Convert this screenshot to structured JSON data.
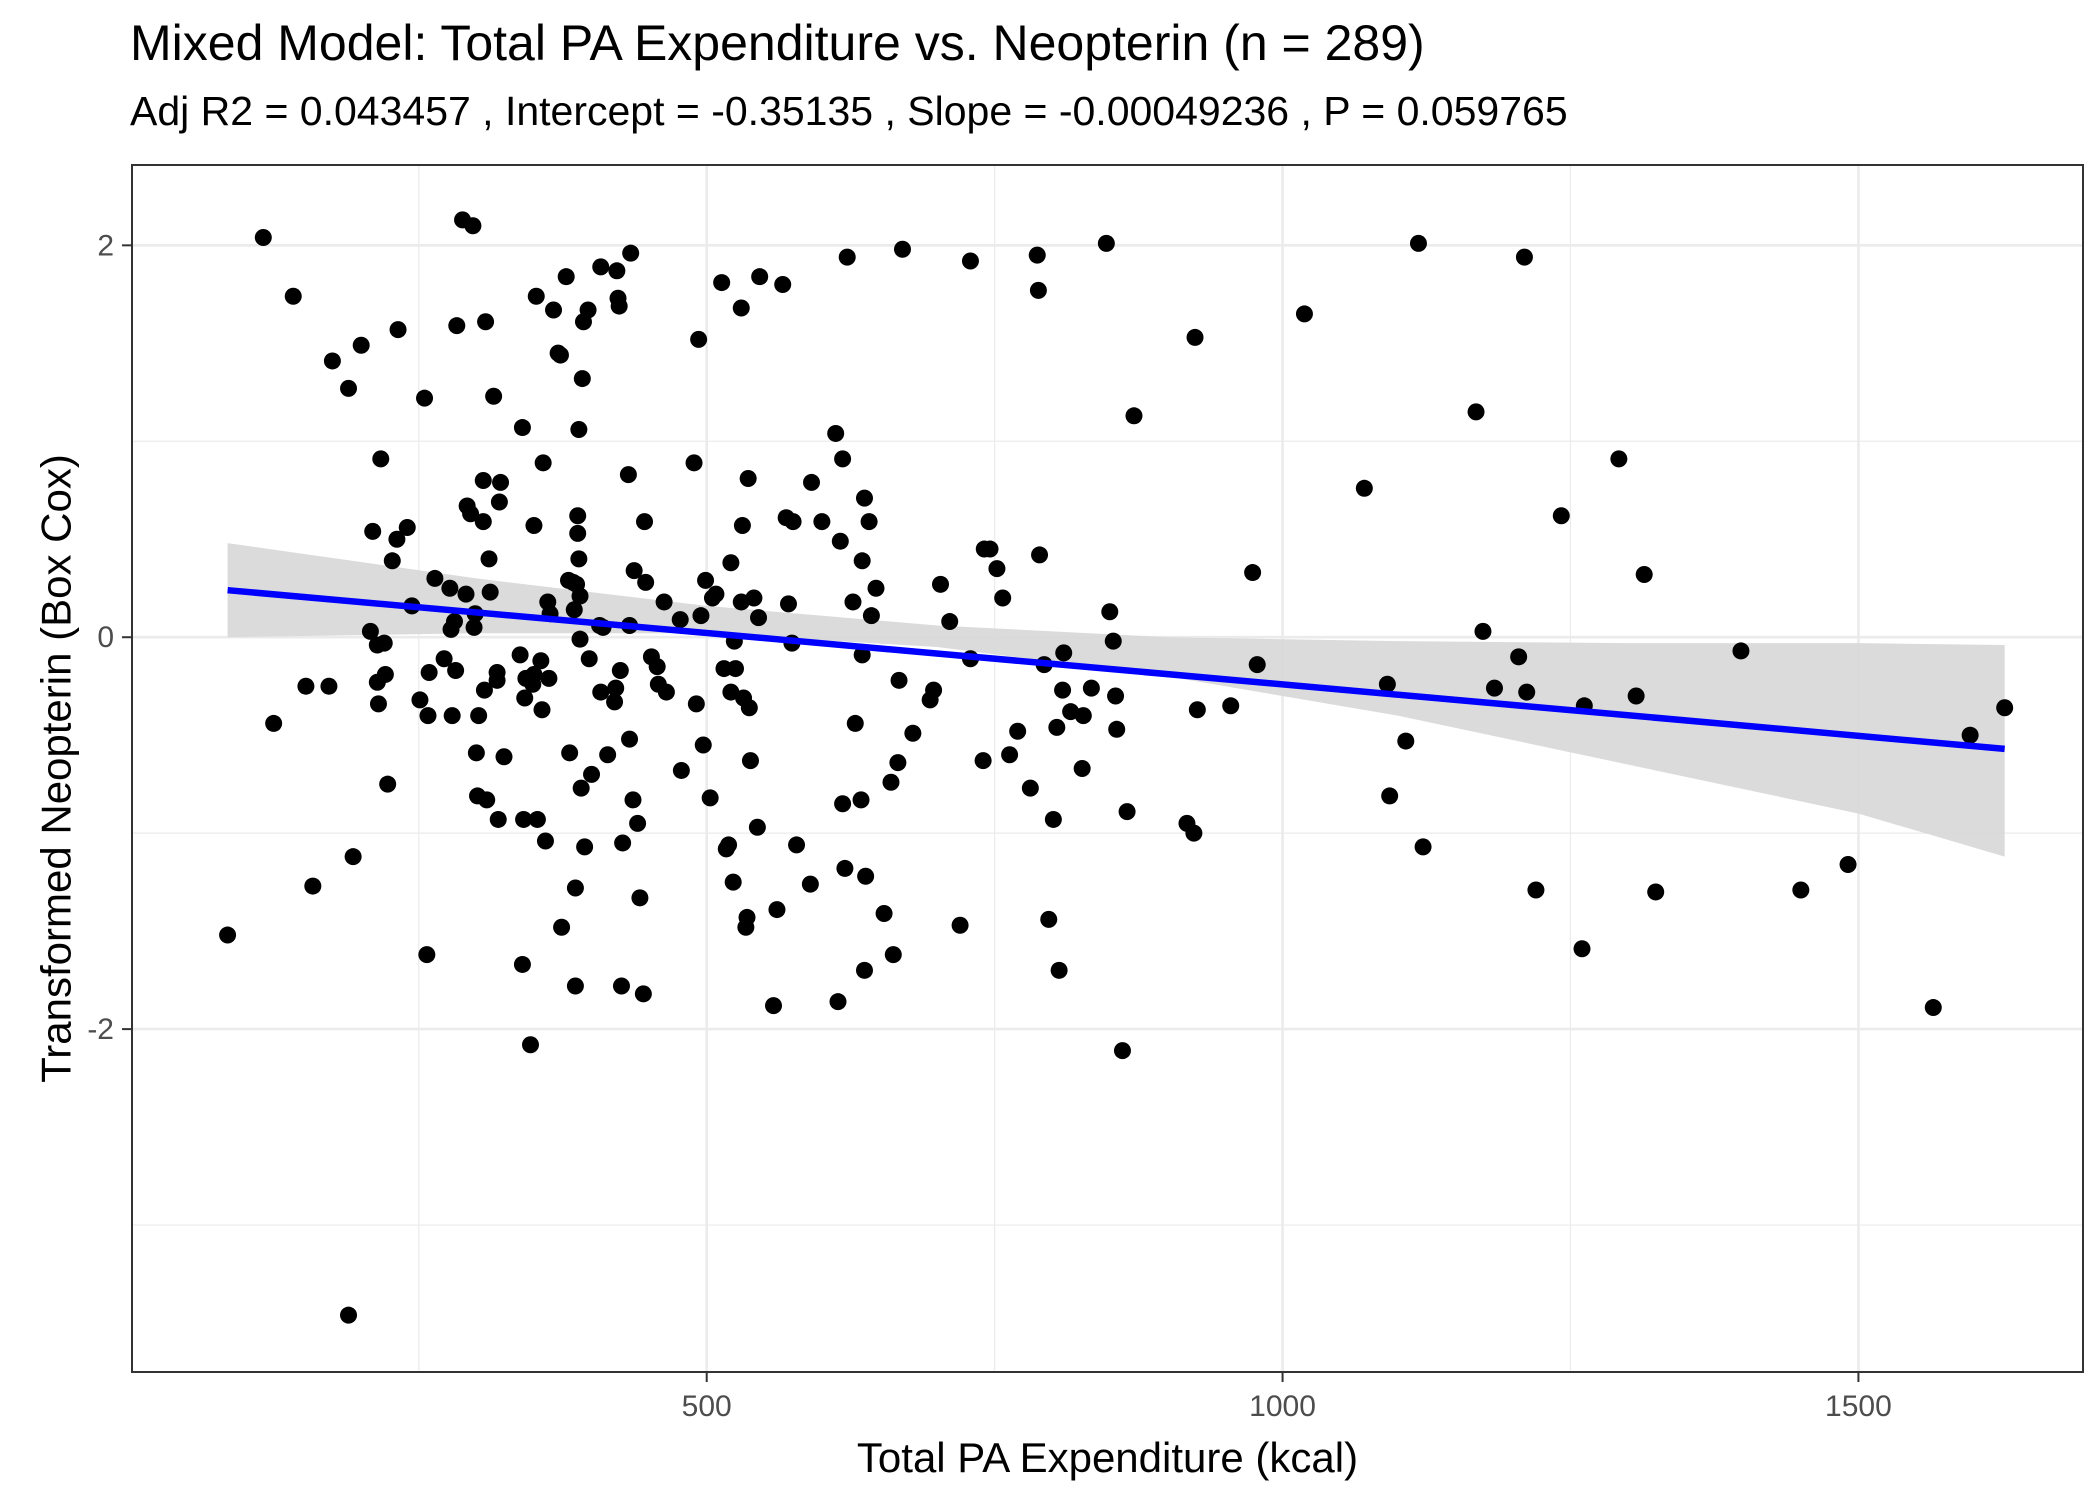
{
  "chart_data": {
    "type": "scatter",
    "title": "Mixed Model: Total PA Expenditure vs. Neopterin (n = 289)",
    "subtitle": "Adj R2 =  0.043457 , Intercept =  -0.35135 , Slope =  -0.00049236 , P =  0.059765",
    "xlabel": "Total PA Expenditure (kcal)",
    "ylabel": "Transformed Neopterin (Box Cox)",
    "xlim": [
      1,
      1695
    ],
    "ylim": [
      -3.75,
      2.41
    ],
    "x_ticks": [
      500,
      1000,
      1500
    ],
    "x_tick_labels": [
      "500",
      "1000",
      "1500"
    ],
    "y_ticks": [
      -2,
      0,
      2
    ],
    "y_tick_labels": [
      "-2",
      "0",
      "2"
    ],
    "grid": true,
    "legend": "none",
    "colors": {
      "points": "#000000",
      "fit_line": "#0000ff",
      "confidence_band": "#d9d9d9",
      "panel_border": "#333333",
      "grid": "#ebebeb"
    },
    "fit_line": {
      "x": [
        84,
        1627
      ],
      "y": [
        0.24,
        -0.57
      ]
    },
    "confidence_band": {
      "x": [
        84,
        300,
        500,
        700,
        900,
        1100,
        1300,
        1500,
        1627
      ],
      "upper": [
        0.48,
        0.3,
        0.16,
        0.06,
        0.0,
        -0.02,
        -0.03,
        -0.03,
        -0.04
      ],
      "lower": [
        0.0,
        0.02,
        0.02,
        -0.05,
        -0.2,
        -0.4,
        -0.65,
        -0.9,
        -1.12
      ]
    },
    "points": [
      [
        84,
        -1.52
      ],
      [
        115,
        2.04
      ],
      [
        124,
        -0.44
      ],
      [
        141,
        1.74
      ],
      [
        152,
        -0.25
      ],
      [
        158,
        -1.27
      ],
      [
        172,
        -0.25
      ],
      [
        175,
        1.41
      ],
      [
        189,
        -3.46
      ],
      [
        189,
        1.27
      ],
      [
        193,
        -1.12
      ],
      [
        200,
        1.49
      ],
      [
        208,
        0.03
      ],
      [
        210,
        0.54
      ],
      [
        214,
        -0.04
      ],
      [
        214,
        -0.23
      ],
      [
        215,
        -0.34
      ],
      [
        217,
        0.91
      ],
      [
        220,
        -0.03
      ],
      [
        221,
        -0.19
      ],
      [
        223,
        -0.75
      ],
      [
        227,
        0.39
      ],
      [
        231,
        0.5
      ],
      [
        232,
        1.57
      ],
      [
        240,
        0.56
      ],
      [
        244,
        0.16
      ],
      [
        251,
        -0.32
      ],
      [
        255,
        1.22
      ],
      [
        257,
        -1.62
      ],
      [
        258,
        -0.4
      ],
      [
        259,
        -0.18
      ],
      [
        264,
        0.3
      ],
      [
        272,
        -0.11
      ],
      [
        277,
        0.25
      ],
      [
        278,
        0.04
      ],
      [
        279,
        -0.4
      ],
      [
        281,
        0.08
      ],
      [
        282,
        -0.17
      ],
      [
        283,
        1.59
      ],
      [
        288,
        2.13
      ],
      [
        291,
        0.22
      ],
      [
        292,
        0.67
      ],
      [
        295,
        0.63
      ],
      [
        297,
        2.1
      ],
      [
        298,
        0.05
      ],
      [
        299,
        0.12
      ],
      [
        300,
        -0.59
      ],
      [
        301,
        -0.81
      ],
      [
        302,
        -0.4
      ],
      [
        306,
        0.8
      ],
      [
        306,
        0.59
      ],
      [
        307,
        -0.27
      ],
      [
        308,
        1.61
      ],
      [
        309,
        -0.83
      ],
      [
        311,
        0.4
      ],
      [
        312,
        0.23
      ],
      [
        315,
        1.23
      ],
      [
        318,
        -0.18
      ],
      [
        318,
        -0.22
      ],
      [
        319,
        -0.93
      ],
      [
        320,
        0.69
      ],
      [
        321,
        0.79
      ],
      [
        324,
        -0.61
      ],
      [
        338,
        -0.09
      ],
      [
        340,
        -1.67
      ],
      [
        340,
        1.07
      ],
      [
        341,
        -0.93
      ],
      [
        342,
        -0.31
      ],
      [
        343,
        -0.21
      ],
      [
        347,
        -2.08
      ],
      [
        349,
        -0.24
      ],
      [
        350,
        0.57
      ],
      [
        350,
        -0.19
      ],
      [
        352,
        1.74
      ],
      [
        353,
        -0.93
      ],
      [
        356,
        -0.12
      ],
      [
        357,
        -0.37
      ],
      [
        358,
        0.89
      ],
      [
        360,
        -1.04
      ],
      [
        362,
        0.18
      ],
      [
        363,
        -0.21
      ],
      [
        364,
        0.12
      ],
      [
        367,
        1.67
      ],
      [
        371,
        1.45
      ],
      [
        373,
        1.44
      ],
      [
        374,
        -1.48
      ],
      [
        378,
        1.84
      ],
      [
        380,
        0.29
      ],
      [
        381,
        -0.59
      ],
      [
        384,
        0.28
      ],
      [
        385,
        0.14
      ],
      [
        386,
        -1.28
      ],
      [
        386,
        -1.78
      ],
      [
        387,
        0.27
      ],
      [
        388,
        0.62
      ],
      [
        388,
        0.53
      ],
      [
        389,
        1.06
      ],
      [
        389,
        0.4
      ],
      [
        390,
        0.21
      ],
      [
        390,
        -0.01
      ],
      [
        391,
        -0.77
      ],
      [
        392,
        1.32
      ],
      [
        393,
        1.61
      ],
      [
        394,
        -1.07
      ],
      [
        397,
        1.67
      ],
      [
        398,
        -0.11
      ],
      [
        400,
        -0.7
      ],
      [
        407,
        0.06
      ],
      [
        408,
        -0.28
      ],
      [
        408,
        1.89
      ],
      [
        410,
        0.05
      ],
      [
        414,
        -0.6
      ],
      [
        420,
        -0.33
      ],
      [
        421,
        -0.26
      ],
      [
        422,
        1.87
      ],
      [
        423,
        1.73
      ],
      [
        424,
        1.69
      ],
      [
        425,
        -0.17
      ],
      [
        426,
        -1.78
      ],
      [
        427,
        -1.05
      ],
      [
        432,
        0.83
      ],
      [
        433,
        0.06
      ],
      [
        433,
        -0.52
      ],
      [
        434,
        1.96
      ],
      [
        436,
        -0.83
      ],
      [
        437,
        0.34
      ],
      [
        440,
        -0.95
      ],
      [
        442,
        -1.33
      ],
      [
        445,
        -1.82
      ],
      [
        446,
        0.59
      ],
      [
        447,
        0.28
      ],
      [
        452,
        -0.1
      ],
      [
        457,
        -0.15
      ],
      [
        458,
        -0.24
      ],
      [
        463,
        0.18
      ],
      [
        465,
        -0.28
      ],
      [
        477,
        0.09
      ],
      [
        478,
        -0.68
      ],
      [
        489,
        0.89
      ],
      [
        491,
        -0.34
      ],
      [
        493,
        1.52
      ],
      [
        495,
        0.11
      ],
      [
        497,
        -0.55
      ],
      [
        499,
        0.29
      ],
      [
        503,
        -0.82
      ],
      [
        505,
        0.2
      ],
      [
        508,
        0.22
      ],
      [
        513,
        1.81
      ],
      [
        515,
        -0.16
      ],
      [
        517,
        -1.08
      ],
      [
        519,
        -1.06
      ],
      [
        521,
        -0.28
      ],
      [
        521,
        0.38
      ],
      [
        523,
        -1.25
      ],
      [
        524,
        -0.02
      ],
      [
        525,
        -0.16
      ],
      [
        530,
        0.18
      ],
      [
        530,
        1.68
      ],
      [
        531,
        0.57
      ],
      [
        532,
        -0.31
      ],
      [
        534,
        -1.48
      ],
      [
        535,
        -1.43
      ],
      [
        536,
        0.81
      ],
      [
        537,
        -0.36
      ],
      [
        538,
        -0.63
      ],
      [
        541,
        0.2
      ],
      [
        544,
        -0.97
      ],
      [
        545,
        0.1
      ],
      [
        546,
        1.84
      ],
      [
        558,
        -1.88
      ],
      [
        561,
        -1.39
      ],
      [
        566,
        1.8
      ],
      [
        569,
        0.61
      ],
      [
        571,
        0.17
      ],
      [
        574,
        -0.03
      ],
      [
        575,
        0.59
      ],
      [
        578,
        -1.06
      ],
      [
        590,
        -1.26
      ],
      [
        591,
        0.79
      ],
      [
        600,
        0.59
      ],
      [
        612,
        1.04
      ],
      [
        614,
        -1.86
      ],
      [
        616,
        0.49
      ],
      [
        618,
        0.91
      ],
      [
        618,
        -0.85
      ],
      [
        620,
        -1.18
      ],
      [
        622,
        1.94
      ],
      [
        627,
        0.18
      ],
      [
        629,
        -0.44
      ],
      [
        634,
        -0.83
      ],
      [
        635,
        -0.09
      ],
      [
        635,
        0.39
      ],
      [
        637,
        -1.7
      ],
      [
        637,
        0.71
      ],
      [
        638,
        -1.22
      ],
      [
        641,
        0.59
      ],
      [
        643,
        0.11
      ],
      [
        647,
        0.25
      ],
      [
        654,
        -1.41
      ],
      [
        660,
        -0.74
      ],
      [
        662,
        -1.62
      ],
      [
        666,
        -0.64
      ],
      [
        667,
        -0.22
      ],
      [
        670,
        1.98
      ],
      [
        679,
        -0.49
      ],
      [
        694,
        -0.32
      ],
      [
        697,
        -0.27
      ],
      [
        703,
        0.27
      ],
      [
        711,
        0.08
      ],
      [
        720,
        -1.47
      ],
      [
        729,
        -0.11
      ],
      [
        729,
        1.92
      ],
      [
        740,
        -0.63
      ],
      [
        741,
        0.45
      ],
      [
        746,
        0.45
      ],
      [
        752,
        0.35
      ],
      [
        757,
        0.2
      ],
      [
        763,
        -0.6
      ],
      [
        770,
        -0.48
      ],
      [
        781,
        -0.77
      ],
      [
        787,
        1.95
      ],
      [
        788,
        1.77
      ],
      [
        789,
        0.42
      ],
      [
        793,
        -0.14
      ],
      [
        797,
        -1.44
      ],
      [
        801,
        -0.93
      ],
      [
        804,
        -0.46
      ],
      [
        806,
        -1.7
      ],
      [
        809,
        -0.27
      ],
      [
        810,
        -0.08
      ],
      [
        816,
        -0.38
      ],
      [
        826,
        -0.67
      ],
      [
        827,
        -0.4
      ],
      [
        834,
        -0.26
      ],
      [
        847,
        2.01
      ],
      [
        850,
        0.13
      ],
      [
        853,
        -0.02
      ],
      [
        855,
        -0.3
      ],
      [
        856,
        -0.47
      ],
      [
        861,
        -2.11
      ],
      [
        865,
        -0.89
      ],
      [
        871,
        1.13
      ],
      [
        917,
        -0.95
      ],
      [
        923,
        -1.0
      ],
      [
        924,
        1.53
      ],
      [
        926,
        -0.37
      ],
      [
        955,
        -0.35
      ],
      [
        974,
        0.33
      ],
      [
        978,
        -0.14
      ],
      [
        1019,
        1.65
      ],
      [
        1071,
        0.76
      ],
      [
        1091,
        -0.24
      ],
      [
        1093,
        -0.81
      ],
      [
        1107,
        -0.53
      ],
      [
        1118,
        2.01
      ],
      [
        1122,
        -1.07
      ],
      [
        1168,
        1.15
      ],
      [
        1174,
        0.03
      ],
      [
        1184,
        -0.26
      ],
      [
        1205,
        -0.1
      ],
      [
        1210,
        1.94
      ],
      [
        1212,
        -0.28
      ],
      [
        1220,
        -1.29
      ],
      [
        1242,
        0.62
      ],
      [
        1260,
        -1.59
      ],
      [
        1262,
        -0.35
      ],
      [
        1292,
        0.91
      ],
      [
        1307,
        -0.3
      ],
      [
        1314,
        0.32
      ],
      [
        1324,
        -1.3
      ],
      [
        1398,
        -0.07
      ],
      [
        1450,
        -1.29
      ],
      [
        1491,
        -1.16
      ],
      [
        1565,
        -1.89
      ],
      [
        1597,
        -0.5
      ],
      [
        1627,
        -0.36
      ]
    ]
  }
}
